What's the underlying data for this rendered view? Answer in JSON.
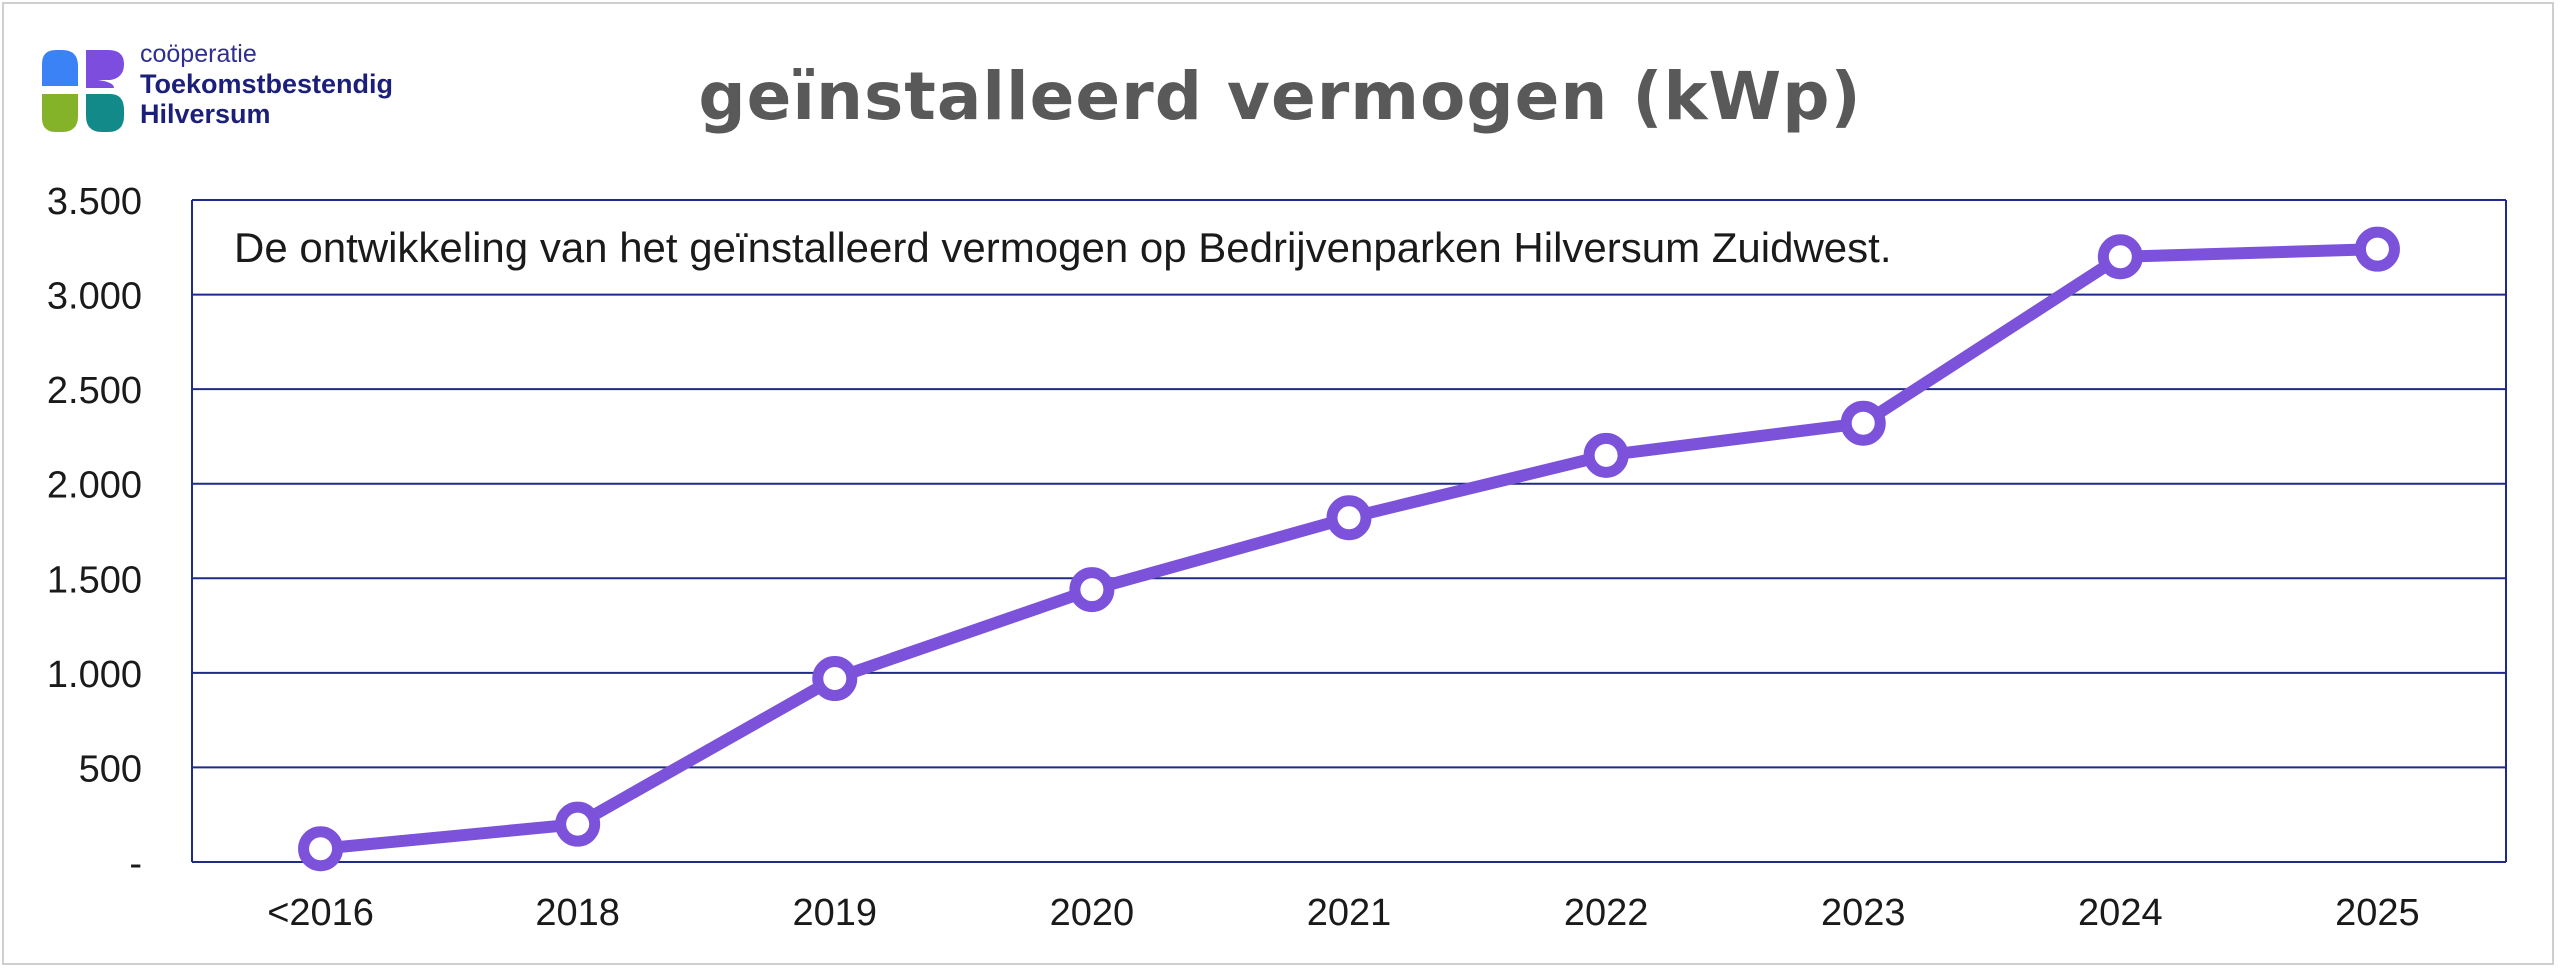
{
  "logo": {
    "line1": "coöperatie",
    "line2": "Toekomstbestendig",
    "line3": "Hilversum",
    "colors": [
      "#3b82f6",
      "#7c4dde",
      "#84b32a",
      "#138a8a"
    ]
  },
  "colors": {
    "line": "#7b52d9",
    "grid": "#1f2a8a",
    "text": "#1a1a1a",
    "title": "#595959"
  },
  "chart_data": {
    "type": "line",
    "title": "geïnstalleerd vermogen  (kWp)",
    "annotation": "De ontwikkeling van het geïnstalleerd vermogen op Bedrijvenparken Hilversum Zuidwest.",
    "categories": [
      "<2016",
      "2018",
      "2019",
      "2020",
      "2021",
      "2022",
      "2023",
      "2024",
      "2025"
    ],
    "values": [
      70,
      200,
      970,
      1440,
      1820,
      2150,
      2320,
      3200,
      3240
    ],
    "ylim": [
      0,
      3500
    ],
    "yticks": [
      0,
      500,
      1000,
      1500,
      2000,
      2500,
      3000,
      3500
    ],
    "ytick_labels": [
      "-",
      "500",
      "1.000",
      "1.500",
      "2.000",
      "2.500",
      "3.000",
      "3.500"
    ],
    "grid": true,
    "legend": "none",
    "markers": "open-circle"
  }
}
